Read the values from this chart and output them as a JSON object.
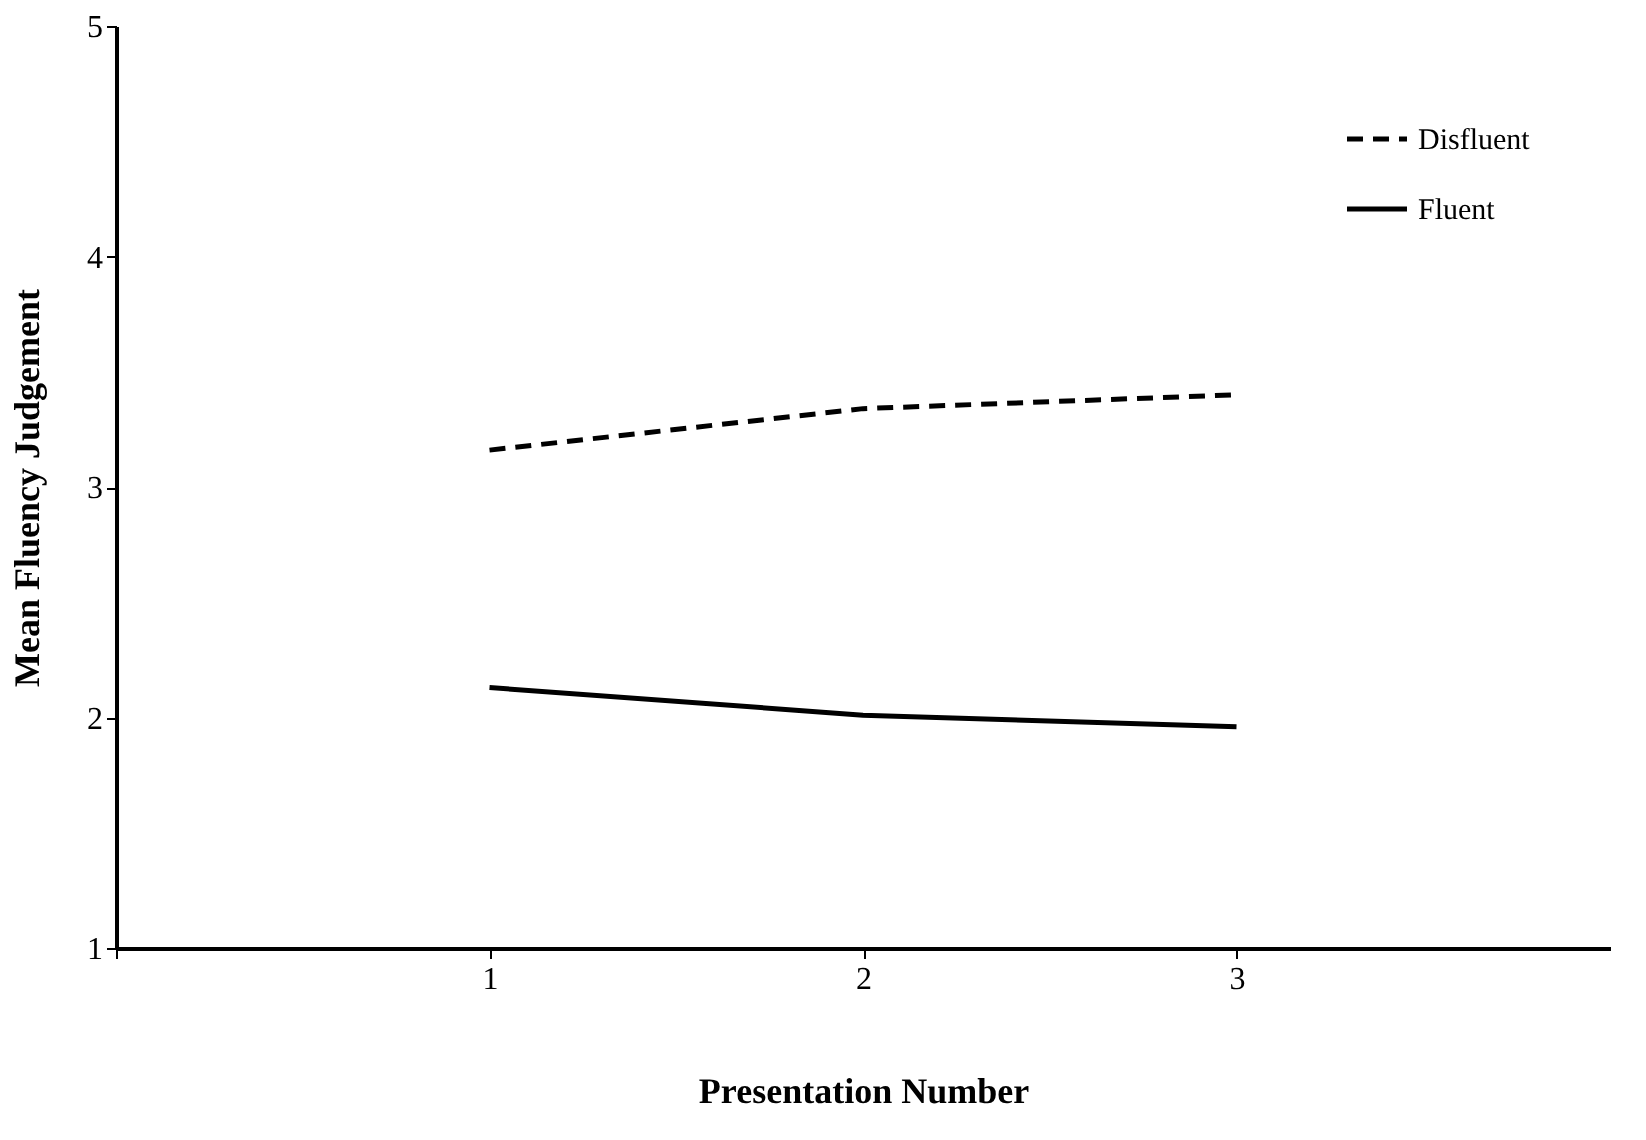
{
  "chart_data": {
    "type": "line",
    "xlabel": "Presentation Number",
    "ylabel": "Mean Fluency Judgement",
    "x": [
      1,
      2,
      3
    ],
    "series": [
      {
        "name": "Disfluent",
        "color": "#000000",
        "line_style": "dashed",
        "values": [
          3.16,
          3.34,
          3.4
        ]
      },
      {
        "name": "Fluent",
        "color": "#000000",
        "line_style": "solid",
        "values": [
          2.13,
          2.01,
          1.96
        ]
      }
    ],
    "xlim": [
      0,
      4
    ],
    "xticks": [
      {
        "value": 0,
        "label": null
      },
      1,
      2,
      3
    ],
    "ylim": [
      1,
      5
    ],
    "yticks": [
      1,
      2,
      3,
      4,
      5
    ],
    "grid": false,
    "legend": "top right",
    "marker": "none"
  }
}
